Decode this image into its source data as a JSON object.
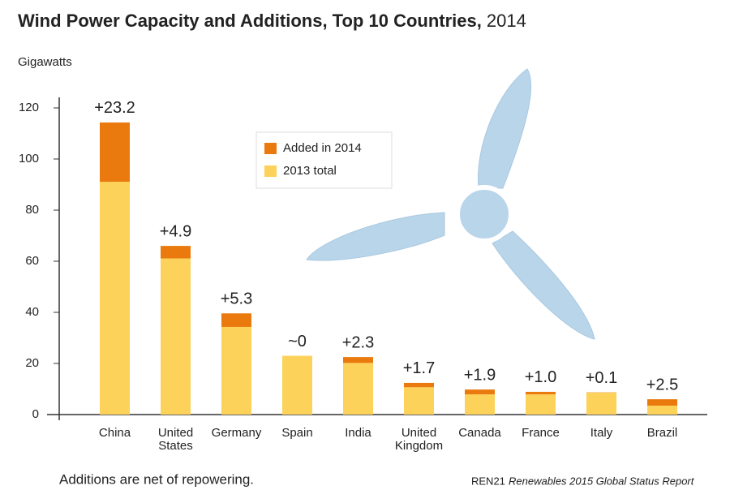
{
  "chart_data": {
    "type": "stacked_bar",
    "title": "Wind Power Capacity and Additions, Top 10 Countries,",
    "subtitle": "2014",
    "y_label": "Gigawatts",
    "categories": [
      [
        "China"
      ],
      [
        "United",
        "States"
      ],
      [
        "Germany"
      ],
      [
        "Spain"
      ],
      [
        "India"
      ],
      [
        "United",
        "Kingdom"
      ],
      [
        "Canada"
      ],
      [
        "France"
      ],
      [
        "Italy"
      ],
      [
        "Brazil"
      ]
    ],
    "series": [
      {
        "name": "2013 total",
        "color": "#fdd25a",
        "values": [
          91.1,
          61.1,
          34.3,
          23.0,
          20.2,
          10.7,
          7.9,
          7.9,
          8.6,
          3.5
        ]
      },
      {
        "name": "Added in 2014",
        "color": "#ea7a0e",
        "values": [
          23.2,
          4.9,
          5.3,
          0,
          2.3,
          1.7,
          1.9,
          1.0,
          0.1,
          2.5
        ],
        "value_labels": [
          "+23.2",
          "+4.9",
          "+5.3",
          "~0",
          "+2.3",
          "+1.7",
          "+1.9",
          "+1.0",
          "+0.1",
          "+2.5"
        ]
      }
    ],
    "ylim": [
      0,
      120
    ],
    "yticks": [
      0,
      20,
      40,
      60,
      80,
      100,
      120
    ],
    "note": "Additions are net of repowering.",
    "source_org": "REN21",
    "source_title": "Renewables 2015 Global Status Report"
  }
}
